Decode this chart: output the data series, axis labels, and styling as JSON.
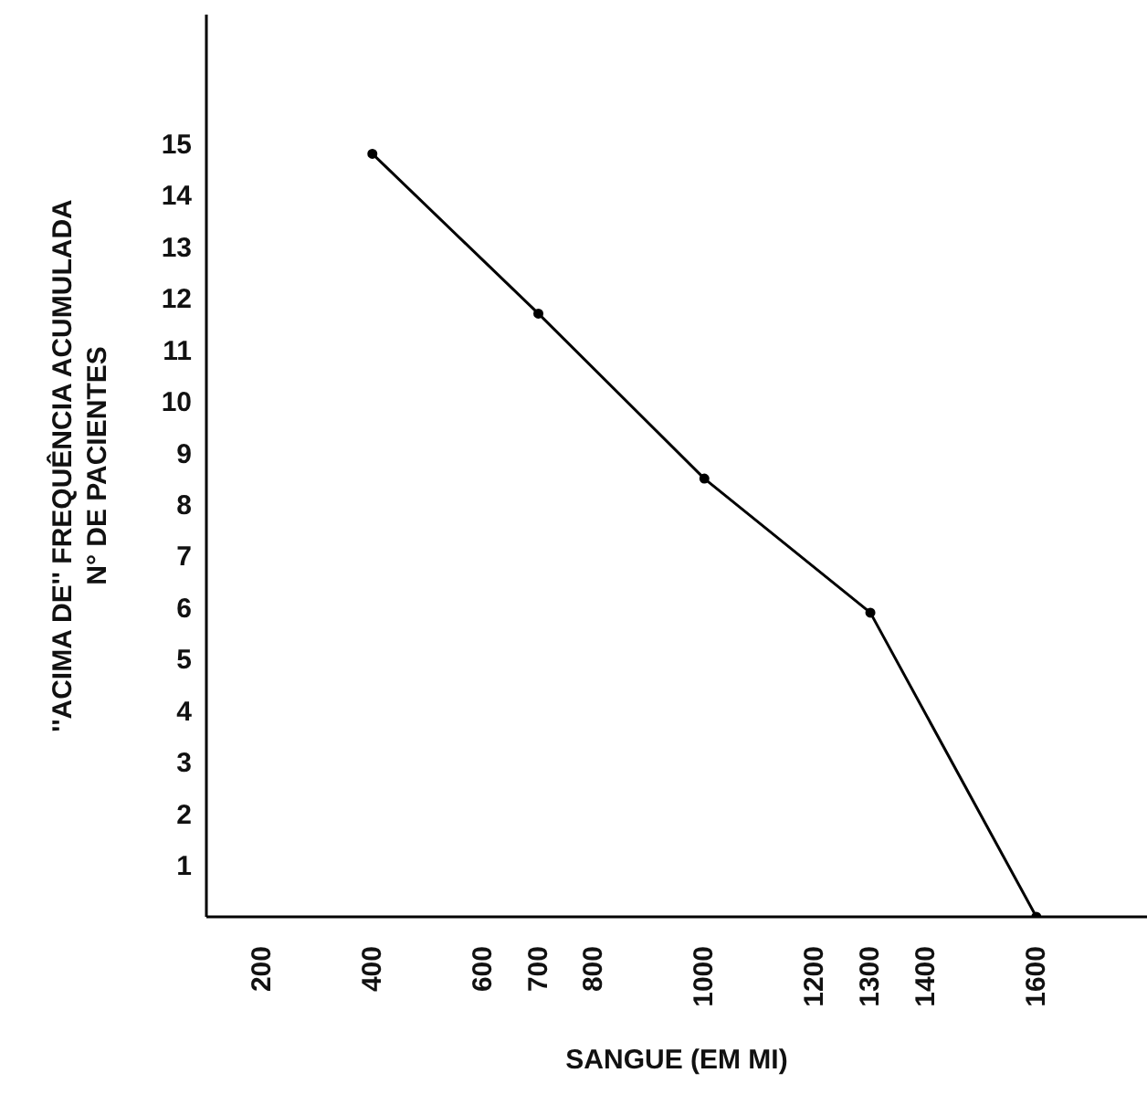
{
  "chart_data": {
    "type": "line",
    "xlabel": "SANGUE (EM MI)",
    "ylabel": "''ACIMA DE'' FREQUÊNCIA ACUMULADA\nN° DE PACIENTES",
    "x": [
      400,
      700,
      1000,
      1300,
      1600
    ],
    "series": [
      {
        "color": "#000000",
        "values": [
          14.8,
          11.7,
          8.5,
          5.9,
          0
        ]
      }
    ],
    "xlim": [
      100,
      1800
    ],
    "xticks": [
      200,
      400,
      600,
      700,
      800,
      1000,
      1200,
      1300,
      1400,
      1600
    ],
    "ylim": [
      0,
      17.5
    ],
    "yticks": [
      1,
      2,
      3,
      4,
      5,
      6,
      7,
      8,
      9,
      10,
      11,
      12,
      13,
      14,
      15
    ],
    "grid": false,
    "legend": false,
    "marker": "circle",
    "line_style": "solid"
  }
}
